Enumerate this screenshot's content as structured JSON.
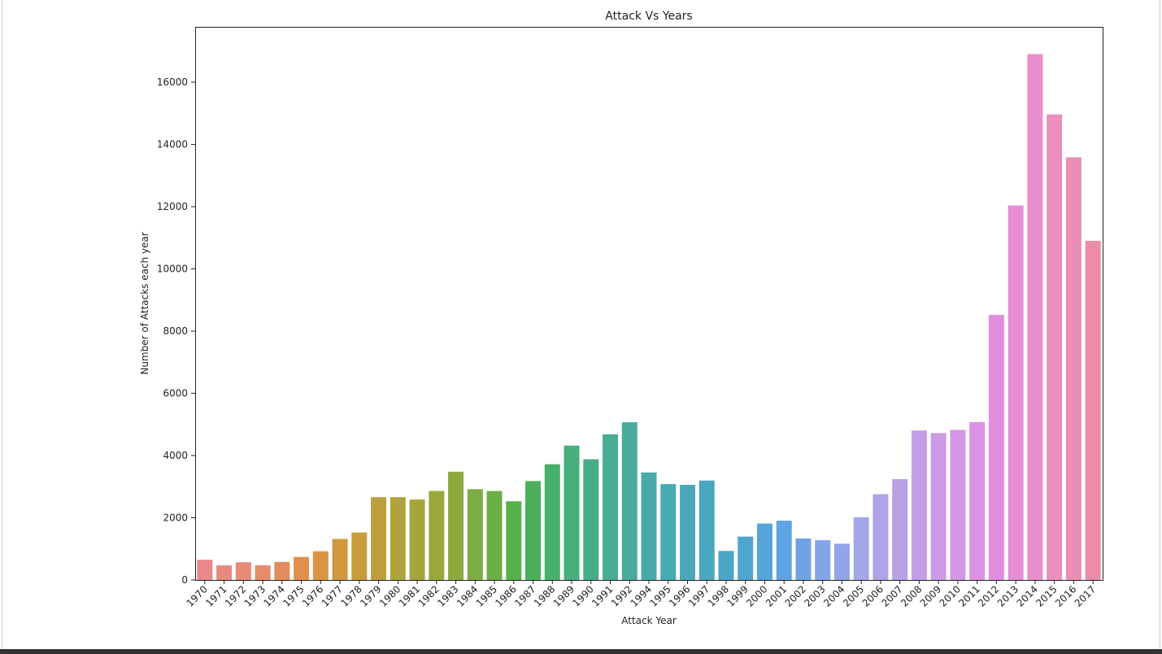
{
  "chart_data": {
    "type": "bar",
    "title": "Attack Vs Years",
    "xlabel": "Attack Year",
    "ylabel": "Number of Attacks each year",
    "categories": [
      "1970",
      "1971",
      "1972",
      "1973",
      "1974",
      "1975",
      "1976",
      "1977",
      "1978",
      "1979",
      "1980",
      "1981",
      "1982",
      "1983",
      "1984",
      "1985",
      "1986",
      "1987",
      "1988",
      "1989",
      "1990",
      "1991",
      "1992",
      "1994",
      "1995",
      "1996",
      "1997",
      "1998",
      "1999",
      "2000",
      "2001",
      "2002",
      "2003",
      "2004",
      "2005",
      "2006",
      "2007",
      "2008",
      "2009",
      "2010",
      "2011",
      "2012",
      "2013",
      "2014",
      "2015",
      "2016",
      "2017"
    ],
    "values": [
      651,
      471,
      568,
      473,
      581,
      740,
      923,
      1319,
      1526,
      2662,
      2662,
      2586,
      2860,
      3480,
      2920,
      2860,
      2530,
      3180,
      3720,
      4320,
      3880,
      4680,
      5070,
      3456,
      3081,
      3058,
      3197,
      934,
      1395,
      1814,
      1906,
      1333,
      1278,
      1166,
      2017,
      2758,
      3242,
      4805,
      4721,
      4826,
      5076,
      8522,
      12036,
      16903,
      14965,
      13587,
      10900
    ],
    "colors": [
      "#e98989",
      "#e88a80",
      "#e78b76",
      "#e68c6a",
      "#e48d5c",
      "#e28f4e",
      "#dc9444",
      "#d2983e",
      "#c89b3b",
      "#bc9f3b",
      "#b0a33c",
      "#a5a53d",
      "#9aa83d",
      "#8caa3e",
      "#7cad42",
      "#6baf46",
      "#58b04b",
      "#4ab05a",
      "#48af6c",
      "#48ae7b",
      "#47ad88",
      "#47ad93",
      "#47ac9d",
      "#48abaa",
      "#48aab2",
      "#49a9b9",
      "#49a8c0",
      "#4ba7c8",
      "#4ea6d0",
      "#55a4da",
      "#5fa3e2",
      "#6fa3e6",
      "#82a4e8",
      "#92a5e8",
      "#a3a6e8",
      "#b0a3e8",
      "#bba0e7",
      "#c49ee7",
      "#cc9be6",
      "#d497e5",
      "#dc92e4",
      "#e28de0",
      "#e68dd5",
      "#e98ecb",
      "#ea8fc0",
      "#eb8eb4",
      "#ec8ca8"
    ],
    "ylim": [
      0,
      17780
    ],
    "yticks": [
      0,
      2000,
      4000,
      6000,
      8000,
      10000,
      12000,
      14000,
      16000
    ]
  }
}
